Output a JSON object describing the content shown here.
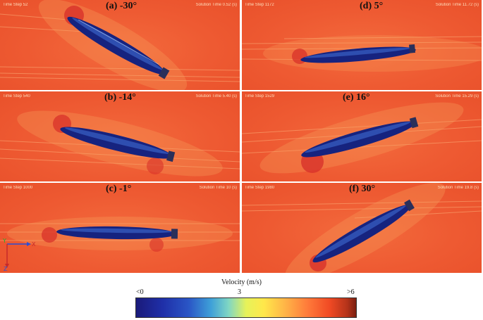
{
  "panels": [
    {
      "id": "a",
      "title": "(a) -30°",
      "time_step": "Time Step 52",
      "solution_time": "Solution Time 0.52 (s)",
      "angle": -30
    },
    {
      "id": "d",
      "title": "(d) 5°",
      "time_step": "Time Step 1172",
      "solution_time": "Solution Time 11.72 (s)",
      "angle": 5
    },
    {
      "id": "b",
      "title": "(b) -14°",
      "time_step": "Time Step 540",
      "solution_time": "Solution Time 5.40 (s)",
      "angle": -14
    },
    {
      "id": "e",
      "title": "(e) 16°",
      "time_step": "Time Step 1529",
      "solution_time": "Solution Time 15.29 (s)",
      "angle": 16
    },
    {
      "id": "c",
      "title": "(c) -1°",
      "time_step": "Time Step 1000",
      "solution_time": "Solution Time 10 (s)",
      "angle": -1
    },
    {
      "id": "f",
      "title": "(f) 30°",
      "time_step": "Time Step 1980",
      "solution_time": "Solution Time 19.8 (s)",
      "angle": 30
    }
  ],
  "axes_labels": {
    "y": "Y",
    "x": "X",
    "z": "Z"
  },
  "colorbar": {
    "title": "Velocity (m/s)",
    "min_label": "<0",
    "mid_label": "3",
    "max_label": ">6"
  }
}
